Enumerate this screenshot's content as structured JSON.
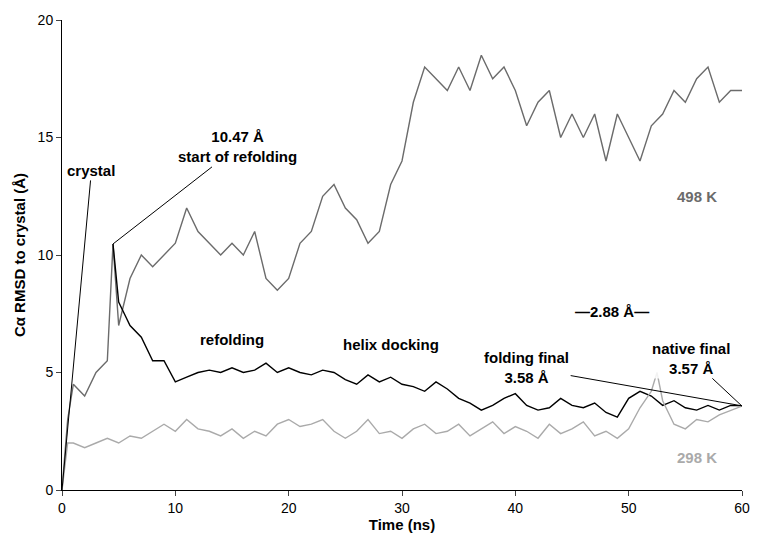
{
  "chart_data": {
    "type": "line",
    "x_label": "Time (ns)",
    "y_label": "Cα RMSD to crystal (Å)",
    "xlim": [
      0,
      60
    ],
    "xticks": [
      0,
      10,
      20,
      30,
      40,
      50,
      60
    ],
    "ylim": [
      0,
      20
    ],
    "yticks": [
      0,
      5,
      10,
      15,
      20
    ],
    "grid": false,
    "series": [
      {
        "color": "#6b6b6b",
        "x": [
          0,
          0.5,
          1,
          2,
          3,
          4,
          4.5,
          5,
          6,
          7,
          8,
          9,
          10,
          11,
          12,
          13,
          14,
          15,
          16,
          17,
          18,
          19,
          20,
          21,
          22,
          23,
          24,
          25,
          26,
          27,
          28,
          29,
          30,
          31,
          32,
          33,
          34,
          35,
          36,
          37,
          38,
          39,
          40,
          41,
          42,
          43,
          44,
          45,
          46,
          47,
          48,
          49,
          50,
          51,
          52,
          53,
          54,
          55,
          56,
          57,
          58,
          59,
          60
        ],
        "values": [
          0,
          3,
          4.5,
          4,
          5,
          5.5,
          10.47,
          7,
          9,
          10,
          9.5,
          10,
          10.5,
          12,
          11,
          10.5,
          10,
          10.5,
          10,
          11,
          9,
          8.5,
          9,
          10.5,
          11,
          12.5,
          13,
          12,
          11.5,
          10.5,
          11,
          13,
          14,
          16.5,
          18,
          17.5,
          17,
          18,
          17,
          18.5,
          17.5,
          18,
          17,
          15.5,
          16.5,
          17,
          15,
          16,
          15,
          16,
          14,
          16,
          15,
          14,
          15.5,
          16,
          17,
          16.5,
          17.5,
          18,
          16.5,
          17,
          17
        ]
      },
      {
        "color": "#000000",
        "x": [
          4.5,
          5,
          5.5,
          6,
          7,
          8,
          9,
          10,
          11,
          12,
          13,
          14,
          15,
          16,
          17,
          18,
          19,
          20,
          21,
          22,
          23,
          24,
          25,
          26,
          27,
          28,
          29,
          30,
          31,
          32,
          33,
          34,
          35,
          36,
          37,
          38,
          39,
          40,
          41,
          42,
          43,
          44,
          45,
          46,
          47,
          48,
          49,
          50,
          51,
          52,
          53,
          54,
          55,
          56,
          57,
          58,
          59,
          60
        ],
        "values": [
          10.47,
          8,
          7.5,
          7,
          6.5,
          5.5,
          5.5,
          4.6,
          4.8,
          5,
          5.1,
          5,
          5.2,
          5,
          5.1,
          5.4,
          5,
          5.2,
          5,
          4.9,
          5.1,
          5,
          4.7,
          4.5,
          4.9,
          4.6,
          4.8,
          4.5,
          4.4,
          4.2,
          4.6,
          4.3,
          3.9,
          3.7,
          3.4,
          3.6,
          3.9,
          4.1,
          3.6,
          3.4,
          3.5,
          3.9,
          3.6,
          3.5,
          3.7,
          3.3,
          3.1,
          3.9,
          4.2,
          4,
          3.6,
          3.8,
          3.5,
          3.4,
          3.6,
          3.4,
          3.6,
          3.58
        ]
      },
      {
        "color": "#aaaaaa",
        "x": [
          0,
          0.5,
          1,
          2,
          3,
          4,
          5,
          6,
          7,
          8,
          9,
          10,
          11,
          12,
          13,
          14,
          15,
          16,
          17,
          18,
          19,
          20,
          21,
          22,
          23,
          24,
          25,
          26,
          27,
          28,
          29,
          30,
          31,
          32,
          33,
          34,
          35,
          36,
          37,
          38,
          39,
          40,
          41,
          42,
          43,
          44,
          45,
          46,
          47,
          48,
          49,
          50,
          51,
          52,
          52.5,
          53,
          54,
          55,
          56,
          57,
          58,
          59,
          60
        ],
        "values": [
          0,
          2,
          2,
          1.8,
          2,
          2.2,
          2,
          2.3,
          2.2,
          2.5,
          2.8,
          2.5,
          3,
          2.6,
          2.5,
          2.3,
          2.6,
          2.2,
          2.5,
          2.3,
          2.8,
          3,
          2.7,
          2.8,
          3,
          2.5,
          2.2,
          2.5,
          3,
          2.4,
          2.5,
          2.2,
          2.6,
          2.8,
          2.4,
          2.5,
          2.8,
          2.3,
          2.6,
          2.9,
          2.4,
          2.7,
          2.5,
          2.2,
          2.8,
          2.4,
          2.6,
          2.9,
          2.3,
          2.5,
          2.2,
          2.6,
          3.5,
          4.2,
          5,
          3.8,
          2.8,
          2.6,
          3,
          2.9,
          3.2,
          3.4,
          3.57
        ]
      }
    ],
    "annotations": [
      {
        "text": [
          "crystal"
        ],
        "x": 2.6,
        "y": 13.6,
        "point": [
          0,
          0
        ]
      },
      {
        "text": [
          "10.47 Å",
          "start of refolding"
        ],
        "x": 15.5,
        "y": 14.6,
        "point": [
          4.5,
          10.47
        ]
      },
      {
        "text": [
          "refolding"
        ],
        "x": 15,
        "y": 6.4
      },
      {
        "text": [
          "helix docking"
        ],
        "x": 29,
        "y": 6.2
      },
      {
        "text": [
          "folding final",
          "3.58 Å"
        ],
        "x": 41,
        "y": 5.2,
        "point": [
          60,
          3.58
        ]
      },
      {
        "text": [
          "—2.88 Å—"
        ],
        "x": 48.5,
        "y": 7.6
      },
      {
        "text": [
          "native final",
          "3.57 Å"
        ],
        "x": 55.5,
        "y": 5.6,
        "point": [
          60,
          3.57
        ]
      },
      {
        "text": [
          "498 K"
        ],
        "x": 56,
        "y": 12.5,
        "color": "#6b6b6b"
      },
      {
        "text": [
          "298 K"
        ],
        "x": 56,
        "y": 1.4,
        "color": "#aaaaaa"
      }
    ]
  }
}
